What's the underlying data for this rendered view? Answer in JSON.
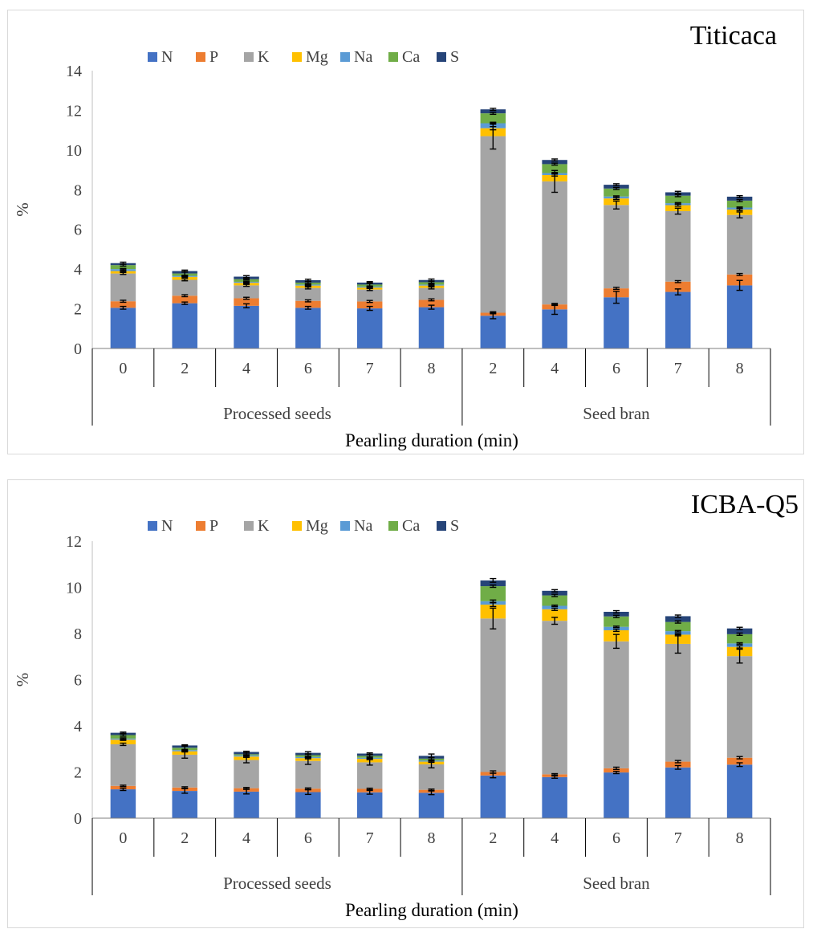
{
  "colors": {
    "N": "#4472C4",
    "P": "#ED7D31",
    "K": "#A5A5A5",
    "Mg": "#FFC000",
    "Na": "#5B9BD5",
    "Ca": "#70AD47",
    "S": "#264478"
  },
  "chart_data": [
    {
      "type": "bar",
      "stacked": true,
      "title": "Titicaca",
      "ylabel": "%",
      "xlabel": "Pearling duration (min)",
      "ylim": [
        0,
        14
      ],
      "yticks": [
        0,
        2,
        4,
        6,
        8,
        10,
        12,
        14
      ],
      "groups": [
        {
          "label": "Processed seeds",
          "categories": [
            "0",
            "2",
            "4",
            "6",
            "7",
            "8"
          ]
        },
        {
          "label": "Seed bran",
          "categories": [
            "2",
            "4",
            "6",
            "7",
            "8"
          ]
        }
      ],
      "categories": [
        "0",
        "2",
        "4",
        "6",
        "7",
        "8",
        "2",
        "4",
        "6",
        "7",
        "8"
      ],
      "legend": [
        "N",
        "P",
        "K",
        "Mg",
        "Na",
        "Ca",
        "S"
      ],
      "series": [
        {
          "name": "N",
          "values": [
            2.05,
            2.28,
            2.15,
            2.05,
            2.02,
            2.08,
            1.65,
            1.97,
            2.58,
            2.85,
            3.18
          ]
        },
        {
          "name": "P",
          "values": [
            0.33,
            0.38,
            0.38,
            0.35,
            0.35,
            0.37,
            0.15,
            0.25,
            0.45,
            0.52,
            0.55
          ]
        },
        {
          "name": "K",
          "values": [
            1.4,
            0.8,
            0.65,
            0.65,
            0.6,
            0.6,
            8.9,
            6.2,
            4.2,
            3.55,
            3.0
          ]
        },
        {
          "name": "Mg",
          "values": [
            0.12,
            0.15,
            0.13,
            0.12,
            0.1,
            0.12,
            0.4,
            0.32,
            0.33,
            0.3,
            0.27
          ]
        },
        {
          "name": "Na",
          "values": [
            0.1,
            0.05,
            0.05,
            0.05,
            0.05,
            0.05,
            0.25,
            0.1,
            0.1,
            0.1,
            0.1
          ]
        },
        {
          "name": "Ca",
          "values": [
            0.2,
            0.12,
            0.13,
            0.1,
            0.1,
            0.12,
            0.5,
            0.45,
            0.4,
            0.38,
            0.35
          ]
        },
        {
          "name": "S",
          "values": [
            0.1,
            0.12,
            0.13,
            0.12,
            0.1,
            0.11,
            0.2,
            0.21,
            0.19,
            0.17,
            0.2
          ]
        }
      ],
      "error_bars": {
        "N": [
          0.07,
          0.06,
          0.1,
          0.07,
          0.1,
          0.1,
          0.15,
          0.25,
          0.3,
          0.15,
          0.25
        ],
        "P": [
          0.05,
          0.05,
          0.05,
          0.05,
          0.05,
          0.05,
          0.05,
          0.05,
          0.05,
          0.05,
          0.05
        ],
        "K": [
          0.05,
          0.05,
          0.05,
          0.05,
          0.05,
          0.05,
          0.65,
          0.55,
          0.2,
          0.15,
          0.15
        ],
        "Mg": [
          0.03,
          0.03,
          0.03,
          0.03,
          0.03,
          0.03,
          0.08,
          0.05,
          0.05,
          0.05,
          0.05
        ],
        "Na": [
          0.03,
          0.03,
          0.03,
          0.03,
          0.03,
          0.03,
          0.05,
          0.03,
          0.03,
          0.03,
          0.03
        ],
        "Ca": [
          0.05,
          0.1,
          0.03,
          0.05,
          0.1,
          0.05,
          0.05,
          0.05,
          0.05,
          0.05,
          0.05
        ],
        "S": [
          0.05,
          0.05,
          0.05,
          0.05,
          0.05,
          0.05,
          0.05,
          0.05,
          0.05,
          0.05,
          0.05
        ]
      }
    },
    {
      "type": "bar",
      "stacked": true,
      "title": "ICBA-Q5",
      "ylabel": "%",
      "xlabel": "Pearling duration (min)",
      "ylim": [
        0,
        12
      ],
      "yticks": [
        0,
        2,
        4,
        6,
        8,
        10,
        12
      ],
      "groups": [
        {
          "label": "Processed seeds",
          "categories": [
            "0",
            "2",
            "4",
            "6",
            "7",
            "8"
          ]
        },
        {
          "label": "Seed bran",
          "categories": [
            "2",
            "4",
            "6",
            "7",
            "8"
          ]
        }
      ],
      "categories": [
        "0",
        "2",
        "4",
        "6",
        "7",
        "8",
        "2",
        "4",
        "6",
        "7",
        "8"
      ],
      "legend": [
        "N",
        "P",
        "K",
        "Mg",
        "Na",
        "Ca",
        "S"
      ],
      "series": [
        {
          "name": "N",
          "values": [
            1.25,
            1.18,
            1.15,
            1.13,
            1.12,
            1.1,
            1.85,
            1.78,
            1.98,
            2.2,
            2.32
          ]
        },
        {
          "name": "P",
          "values": [
            0.15,
            0.15,
            0.15,
            0.15,
            0.15,
            0.13,
            0.15,
            0.12,
            0.18,
            0.25,
            0.3
          ]
        },
        {
          "name": "K",
          "values": [
            1.8,
            1.42,
            1.22,
            1.2,
            1.15,
            1.1,
            6.65,
            6.65,
            5.5,
            5.1,
            4.4
          ]
        },
        {
          "name": "Mg",
          "values": [
            0.2,
            0.15,
            0.15,
            0.12,
            0.15,
            0.12,
            0.6,
            0.5,
            0.48,
            0.4,
            0.4
          ]
        },
        {
          "name": "Na",
          "values": [
            0.05,
            0.05,
            0.05,
            0.05,
            0.05,
            0.05,
            0.15,
            0.15,
            0.15,
            0.15,
            0.15
          ]
        },
        {
          "name": "Ca",
          "values": [
            0.15,
            0.1,
            0.05,
            0.08,
            0.08,
            0.08,
            0.65,
            0.45,
            0.45,
            0.4,
            0.4
          ]
        },
        {
          "name": "S",
          "values": [
            0.1,
            0.1,
            0.1,
            0.1,
            0.1,
            0.12,
            0.25,
            0.2,
            0.2,
            0.25,
            0.25
          ]
        }
      ],
      "error_bars": {
        "N": [
          0.05,
          0.1,
          0.1,
          0.1,
          0.08,
          0.08,
          0.1,
          0.05,
          0.05,
          0.08,
          0.08
        ],
        "P": [
          0.03,
          0.03,
          0.03,
          0.03,
          0.03,
          0.03,
          0.05,
          0.03,
          0.05,
          0.05,
          0.05
        ],
        "K": [
          0.05,
          0.15,
          0.12,
          0.15,
          0.12,
          0.15,
          0.45,
          0.15,
          0.3,
          0.4,
          0.3
        ],
        "Mg": [
          0.03,
          0.03,
          0.03,
          0.03,
          0.03,
          0.03,
          0.08,
          0.05,
          0.05,
          0.05,
          0.05
        ],
        "Na": [
          0.03,
          0.03,
          0.03,
          0.03,
          0.03,
          0.03,
          0.05,
          0.03,
          0.03,
          0.03,
          0.03
        ],
        "Ca": [
          0.05,
          0.1,
          0.05,
          0.05,
          0.05,
          0.05,
          0.05,
          0.05,
          0.05,
          0.05,
          0.05
        ],
        "S": [
          0.03,
          0.03,
          0.03,
          0.05,
          0.03,
          0.08,
          0.08,
          0.05,
          0.05,
          0.05,
          0.05
        ]
      }
    }
  ]
}
